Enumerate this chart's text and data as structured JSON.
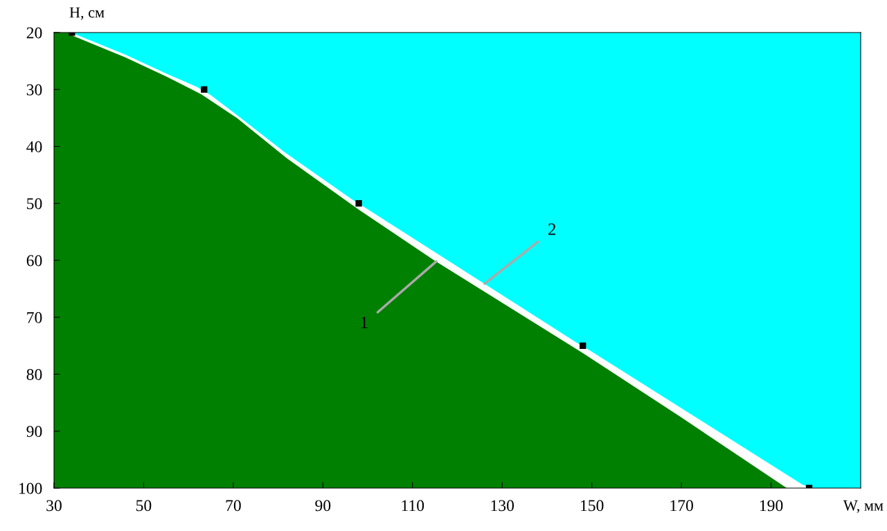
{
  "chart_data": {
    "type": "area",
    "xlabel": "W, мм",
    "ylabel": "H, см",
    "xlim": [
      30,
      210
    ],
    "xticks": [
      30,
      50,
      70,
      90,
      110,
      130,
      150,
      170,
      190
    ],
    "ylim": [
      100,
      20
    ],
    "yticks": [
      20,
      30,
      40,
      50,
      60,
      70,
      80,
      90,
      100
    ],
    "grid": false,
    "legend": false,
    "bands": [
      {
        "axis": "y",
        "from": 20,
        "to": 100,
        "color": "#008000"
      }
    ],
    "series": [
      {
        "color": "#ffffff",
        "x": [
          34,
          46,
          55,
          63,
          71,
          82,
          98,
          115,
          148,
          170,
          193.7,
          210
        ],
        "values": [
          20.4,
          24.3,
          27.6,
          30.8,
          35,
          42,
          51,
          60,
          76.2,
          87.5,
          100,
          100
        ]
      },
      {
        "color": "#00ffff",
        "x": [
          34.4,
          46,
          55,
          62,
          65,
          70.5,
          81.6,
          96.5,
          99.5,
          146.5,
          149.5,
          197,
          199.5,
          210
        ],
        "values": [
          20.1,
          23.8,
          27.1,
          29.5,
          30.9,
          34.2,
          41,
          49.2,
          50.7,
          74.3,
          75.7,
          99.3,
          100,
          100
        ]
      },
      {
        "type": "scatter",
        "color": "#000000",
        "marker": "square",
        "x": [
          34,
          63.5,
          98,
          148,
          198.5
        ],
        "values": [
          20,
          30,
          50,
          75,
          100
        ]
      }
    ],
    "annotations": [
      {
        "text": "1",
        "x": 115.3,
        "y": 60.2
      },
      {
        "text": "2",
        "x": 126.1,
        "y": 64.1
      }
    ]
  }
}
